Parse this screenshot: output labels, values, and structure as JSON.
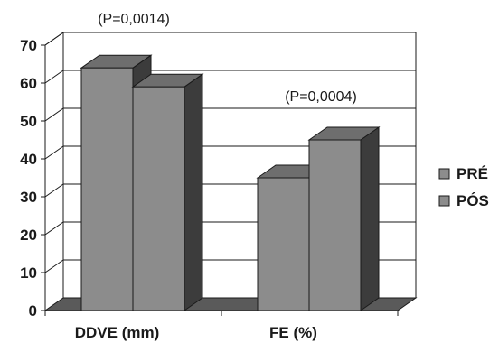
{
  "chart_data": {
    "type": "bar",
    "categories": [
      "DDVE (mm)",
      "FE (%)"
    ],
    "series": [
      {
        "name": "PRÉ",
        "values": [
          64,
          35
        ],
        "color": "#8c8c8c"
      },
      {
        "name": "PÓS",
        "values": [
          59,
          45
        ],
        "color": "#8c8c8c"
      }
    ],
    "annotations": [
      "(P=0,0014)",
      "(P=0,0004)"
    ],
    "ylim": [
      0,
      70
    ],
    "yticks": [
      0,
      10,
      20,
      30,
      40,
      50,
      60,
      70
    ],
    "grid": true,
    "legend_position": "right",
    "style": "3d"
  }
}
